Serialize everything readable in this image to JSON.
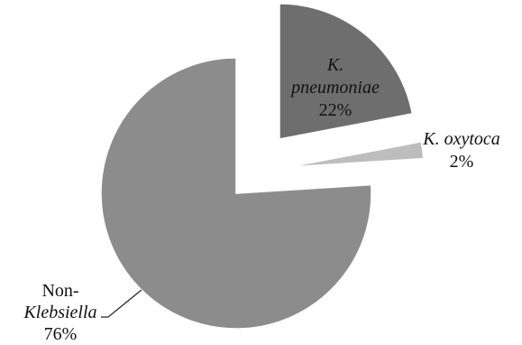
{
  "chart_data": {
    "type": "pie",
    "title": "",
    "exploded": true,
    "slices": [
      {
        "label_lines": [
          {
            "text": "K.",
            "italic": true
          },
          {
            "text": "pneumoniae",
            "italic": true
          },
          {
            "text": "22%",
            "italic": false
          }
        ],
        "value": 22,
        "percent_label": "22%",
        "color": "#6e6e6e"
      },
      {
        "label_lines": [
          {
            "text": "K. oxytoca",
            "italic": true
          },
          {
            "text": "2%",
            "italic": false
          }
        ],
        "value": 2,
        "percent_label": "2%",
        "color": "#bdbdbd"
      },
      {
        "label_lines": [
          {
            "text": "Non-",
            "italic": false
          },
          {
            "text": "Klebsiella",
            "italic": true
          },
          {
            "text": "76%",
            "italic": false
          }
        ],
        "value": 76,
        "percent_label": "76%",
        "color": "#8c8c8c"
      }
    ],
    "legend": "none",
    "labels": "outside-or-inside-slices"
  }
}
